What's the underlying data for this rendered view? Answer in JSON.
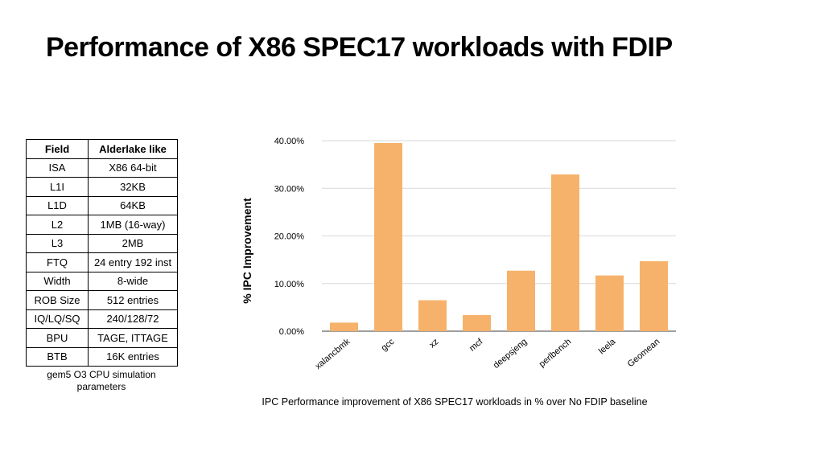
{
  "slide": {
    "title": "Performance of X86 SPEC17 workloads with FDIP"
  },
  "table": {
    "headers": [
      "Field",
      "Alderlake like"
    ],
    "rows": [
      [
        "ISA",
        "X86 64-bit"
      ],
      [
        "L1I",
        "32KB"
      ],
      [
        "L1D",
        "64KB"
      ],
      [
        "L2",
        "1MB (16-way)"
      ],
      [
        "L3",
        "2MB"
      ],
      [
        "FTQ",
        "24 entry 192 inst"
      ],
      [
        "Width",
        "8-wide"
      ],
      [
        "ROB Size",
        "512 entries"
      ],
      [
        "IQ/LQ/SQ",
        "240/128/72"
      ],
      [
        "BPU",
        "TAGE, ITTAGE"
      ],
      [
        "BTB",
        "16K entries"
      ]
    ],
    "caption": "gem5 O3 CPU simulation parameters"
  },
  "chart_data": {
    "type": "bar",
    "categories": [
      "xalancbmk",
      "gcc",
      "xz",
      "mcf",
      "deepsjeng",
      "perlbench",
      "leela",
      "Geomean"
    ],
    "values": [
      1.8,
      39.5,
      6.5,
      3.4,
      12.7,
      32.9,
      11.7,
      14.7
    ],
    "ylabel": "% IPC Improvement",
    "ylim": [
      0,
      40
    ],
    "yticks": [
      "0.00%",
      "10.00%",
      "20.00%",
      "30.00%",
      "40.00%"
    ],
    "ytick_values": [
      0,
      10,
      20,
      30,
      40
    ],
    "grid": true,
    "bar_color": "#f6b26b",
    "caption": "IPC Performance improvement of X86 SPEC17 workloads in % over No FDIP baseline"
  }
}
